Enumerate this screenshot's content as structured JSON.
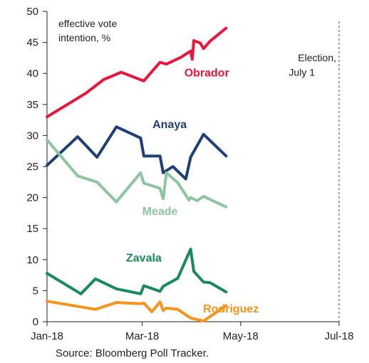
{
  "chart_data": {
    "type": "line",
    "ylabel_note": "effective vote\nintention, %",
    "ylim": [
      0,
      50
    ],
    "yticks": [
      "0",
      "5",
      "10",
      "15",
      "20",
      "25",
      "30",
      "35",
      "40",
      "45",
      "50"
    ],
    "xlim": [
      "2018-01-01",
      "2018-07-01"
    ],
    "xticks": [
      {
        "date": "2018-01-01",
        "label": "Jan-18"
      },
      {
        "date": "2018-03-01",
        "label": "Mar-18"
      },
      {
        "date": "2018-05-01",
        "label": "May-18"
      },
      {
        "date": "2018-07-01",
        "label": "Jul-18"
      }
    ],
    "grid": false,
    "election": {
      "date": "2018-07-01",
      "label_line1": "Election,",
      "label_line2": "July 1"
    },
    "source": "Source: Bloomberg Poll Tracker.",
    "series": [
      {
        "name": "Obrador",
        "color": "#e8163c",
        "label_pos": {
          "date": "2018-04-10",
          "value": 39.5
        },
        "points": [
          [
            "2018-01-01",
            33.0
          ],
          [
            "2018-01-25",
            36.8
          ],
          [
            "2018-02-05",
            39.0
          ],
          [
            "2018-02-16",
            40.2
          ],
          [
            "2018-03-02",
            38.8
          ],
          [
            "2018-03-12",
            41.8
          ],
          [
            "2018-03-16",
            41.5
          ],
          [
            "2018-03-25",
            42.6
          ],
          [
            "2018-03-31",
            43.6
          ],
          [
            "2018-04-01",
            42.3
          ],
          [
            "2018-04-02",
            45.3
          ],
          [
            "2018-04-06",
            44.9
          ],
          [
            "2018-04-08",
            44.0
          ],
          [
            "2018-04-12",
            45.2
          ],
          [
            "2018-04-22",
            47.3
          ]
        ]
      },
      {
        "name": "Anaya",
        "color": "#1f3f76",
        "label_pos": {
          "date": "2018-03-18",
          "value": 31.2
        },
        "points": [
          [
            "2018-01-01",
            25.2
          ],
          [
            "2018-01-20",
            29.8
          ],
          [
            "2018-02-01",
            26.5
          ],
          [
            "2018-02-13",
            31.4
          ],
          [
            "2018-02-28",
            29.6
          ],
          [
            "2018-03-02",
            26.7
          ],
          [
            "2018-03-12",
            26.7
          ],
          [
            "2018-03-14",
            24.0
          ],
          [
            "2018-03-20",
            25.0
          ],
          [
            "2018-03-28",
            23.0
          ],
          [
            "2018-03-31",
            26.5
          ],
          [
            "2018-04-08",
            30.2
          ],
          [
            "2018-04-22",
            26.7
          ]
        ]
      },
      {
        "name": "Meade",
        "color": "#8ec49f",
        "label_pos": {
          "date": "2018-03-12",
          "value": 17.2
        },
        "points": [
          [
            "2018-01-01",
            29.3
          ],
          [
            "2018-01-20",
            23.5
          ],
          [
            "2018-02-01",
            22.5
          ],
          [
            "2018-02-13",
            19.3
          ],
          [
            "2018-02-28",
            24.0
          ],
          [
            "2018-03-02",
            22.3
          ],
          [
            "2018-03-12",
            21.5
          ],
          [
            "2018-03-14",
            19.8
          ],
          [
            "2018-03-16",
            24.0
          ],
          [
            "2018-03-23",
            22.4
          ],
          [
            "2018-03-30",
            19.6
          ],
          [
            "2018-03-31",
            20.0
          ],
          [
            "2018-04-04",
            19.5
          ],
          [
            "2018-04-08",
            20.2
          ],
          [
            "2018-04-22",
            18.5
          ]
        ]
      },
      {
        "name": "Zavala",
        "color": "#1a8a5c",
        "label_pos": {
          "date": "2018-03-02",
          "value": 9.7
        },
        "points": [
          [
            "2018-01-01",
            7.8
          ],
          [
            "2018-01-22",
            4.5
          ],
          [
            "2018-01-31",
            6.9
          ],
          [
            "2018-02-13",
            5.3
          ],
          [
            "2018-02-28",
            4.5
          ],
          [
            "2018-03-02",
            5.8
          ],
          [
            "2018-03-12",
            4.9
          ],
          [
            "2018-03-14",
            5.7
          ],
          [
            "2018-03-23",
            7.0
          ],
          [
            "2018-03-31",
            11.7
          ],
          [
            "2018-04-02",
            8.1
          ],
          [
            "2018-04-08",
            6.4
          ],
          [
            "2018-04-12",
            6.3
          ],
          [
            "2018-04-22",
            4.8
          ]
        ]
      },
      {
        "name": "Rodriguez",
        "color": "#f7941d",
        "label_pos": {
          "date": "2018-04-25",
          "value": 1.5
        },
        "points": [
          [
            "2018-01-01",
            3.3
          ],
          [
            "2018-01-31",
            2.0
          ],
          [
            "2018-02-13",
            3.1
          ],
          [
            "2018-02-28",
            2.9
          ],
          [
            "2018-03-02",
            3.0
          ],
          [
            "2018-03-07",
            1.6
          ],
          [
            "2018-03-12",
            3.2
          ],
          [
            "2018-03-14",
            1.8
          ],
          [
            "2018-03-16",
            2.2
          ],
          [
            "2018-03-23",
            2.0
          ],
          [
            "2018-03-31",
            0.6
          ],
          [
            "2018-04-08",
            0.1
          ],
          [
            "2018-04-22",
            2.6
          ]
        ]
      }
    ]
  }
}
